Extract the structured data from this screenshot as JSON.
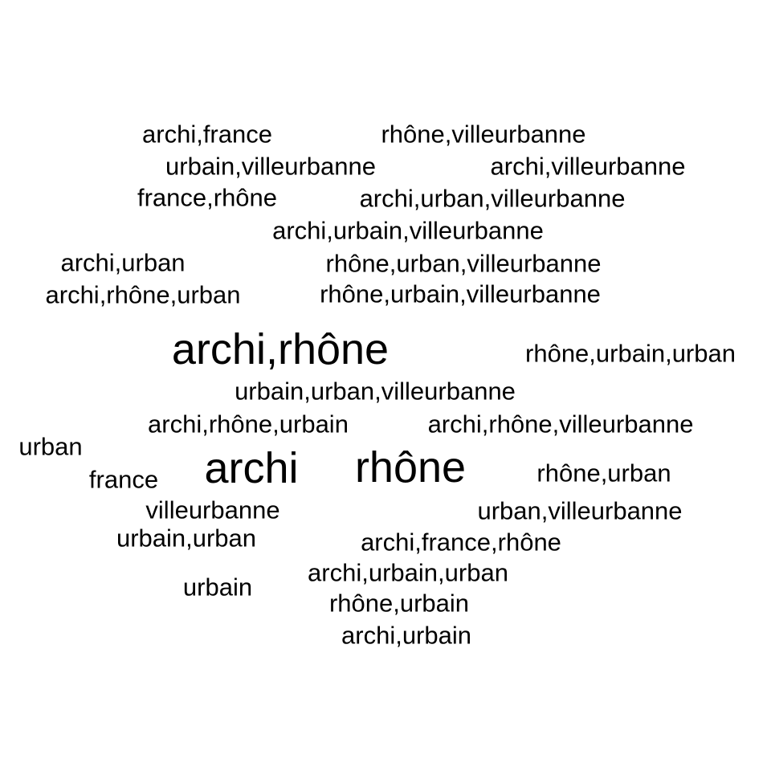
{
  "background_color": "#ffffff",
  "text_color": "#000000",
  "words": [
    "archi,france",
    "rhône,villeurbanne",
    "urbain,villeurbanne",
    "archi,villeurbanne",
    "france,rhône",
    "archi,urban,villeurbanne",
    "archi,urbain,villeurbanne",
    "archi,urban",
    "rhône,urban,villeurbanne",
    "archi,rhône,urban",
    "rhône,urbain,villeurbanne",
    "archi,rhône",
    "rhône,urbain,urban",
    "urbain,urban,villeurbanne",
    "archi,rhône,urbain",
    "archi,rhône,villeurbanne",
    "urban",
    "france",
    "archi",
    "rhône",
    "rhône,urban",
    "villeurbanne",
    "urban,villeurbanne",
    "urbain,urban",
    "archi,france,rhône",
    "urbain",
    "archi,urbain,urban",
    "rhône,urbain",
    "archi,urbain"
  ]
}
